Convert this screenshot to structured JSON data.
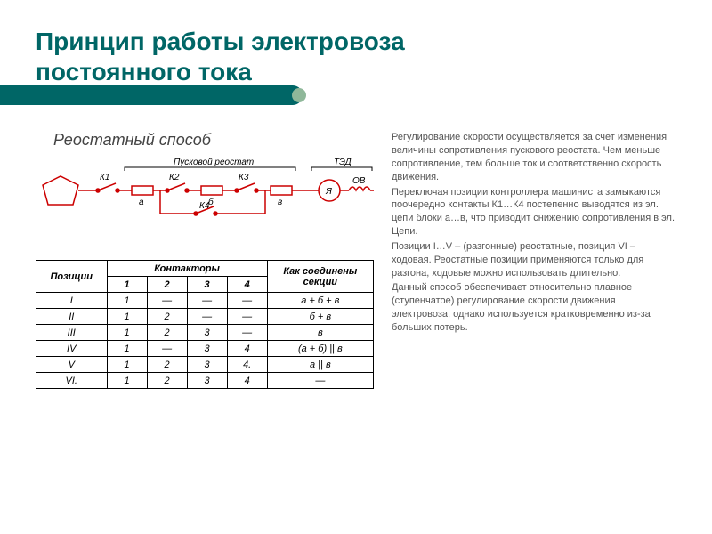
{
  "title_line1": "Принцип работы электровоза",
  "title_line2": "постоянного тока",
  "subtitle": "Реостатный способ",
  "circuit": {
    "label_reostat": "Пусковой реостат",
    "label_ted": "ТЭД",
    "k1": "К1",
    "k2": "К2",
    "k3": "К3",
    "k4": "К4",
    "a": "а",
    "b": "б",
    "v": "в",
    "ov": "ОВ",
    "ya": "Я",
    "line_color": "#cc0000",
    "text_color": "#000000"
  },
  "table": {
    "header_positions": "Позиции",
    "header_contactors": "Контакторы",
    "header_connection": "Как соединены секции",
    "k_cols": [
      "1",
      "2",
      "3",
      "4"
    ],
    "rows": [
      {
        "pos": "I",
        "k": [
          "1",
          "—",
          "—",
          "—"
        ],
        "conn": "а + б + в"
      },
      {
        "pos": "II",
        "k": [
          "1",
          "2",
          "—",
          "—"
        ],
        "conn": "б + в"
      },
      {
        "pos": "III",
        "k": [
          "1",
          "2",
          "3",
          "—"
        ],
        "conn": "в"
      },
      {
        "pos": "IV",
        "k": [
          "1",
          "—",
          "3",
          "4"
        ],
        "conn": "(а + б) || в"
      },
      {
        "pos": "V",
        "k": [
          "1",
          "2",
          "3",
          "4."
        ],
        "conn": "а || в"
      },
      {
        "pos": "VI.",
        "k": [
          "1",
          "2",
          "3",
          "4"
        ],
        "conn": "—"
      }
    ]
  },
  "body_text": {
    "p1": "Регулирование скорости осуществляется за счет изменения величины сопротивления пускового реостата. Чем меньше сопротивление, тем больше ток и соответственно скорость движения.",
    "p2": "Переключая позиции контроллера машиниста замыкаются поочередно контакты К1…К4 постепенно выводятся из эл. цепи блоки а…в, что приводит снижению сопротивления в эл. Цепи.",
    "p3": "Позиции I…V – (разгонные) реостатные, позиция VI – ходовая. Реостатные позиции применяются только для разгона, ходовые можно использовать длительно.",
    "p4": "Данный способ обеспечивает относительно плавное (ступенчатое) регулирование скорости движения электровоза, однако используется кратковременно из-за больших потерь."
  },
  "colors": {
    "title": "#006666",
    "stripe": "#006666",
    "body_text": "#555555"
  }
}
